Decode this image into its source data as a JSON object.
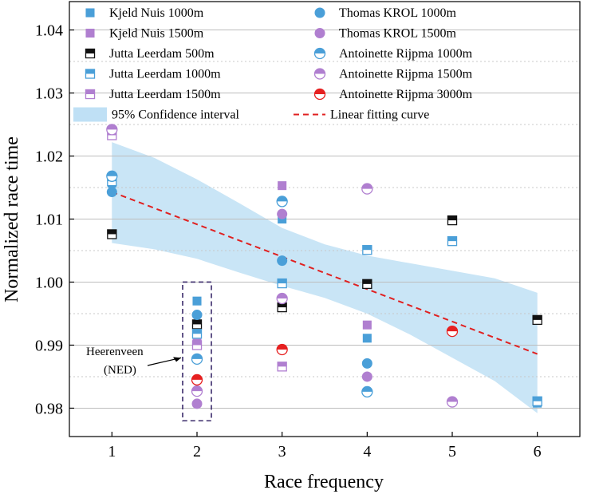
{
  "chart_data": {
    "type": "scatter",
    "xlabel": "Race frequency",
    "ylabel": "Normalized race time",
    "xlim": [
      0.5,
      6.5
    ],
    "ylim": [
      0.9755,
      1.0445
    ],
    "xticks": [
      1,
      2,
      3,
      4,
      5,
      6
    ],
    "yticks": [
      0.98,
      0.99,
      1.0,
      1.01,
      1.02,
      1.03,
      1.04
    ],
    "ytick_labels": [
      "0.98",
      "0.99",
      "1.00",
      "1.01",
      "1.02",
      "1.03",
      "1.04"
    ],
    "grid": "horizontal",
    "colors": {
      "blue": "#4a9fd8",
      "purple": "#b07fd0",
      "black": "#111111",
      "red": "#e62020",
      "band": "#bfe0f5",
      "fit": "#e02020"
    },
    "series": [
      {
        "name": "Kjeld Nuis 1000m",
        "marker": "square",
        "fill": "full",
        "color": "#4a9fd8",
        "points": [
          [
            1,
            1.0157
          ],
          [
            2,
            0.997
          ],
          [
            3,
            1.01
          ],
          [
            4,
            0.9911
          ],
          [
            5,
            1.0065
          ],
          [
            6,
            0.9808
          ]
        ]
      },
      {
        "name": "Kjeld Nuis 1500m",
        "marker": "square",
        "fill": "full",
        "color": "#b07fd0",
        "points": [
          [
            1,
            1.024
          ],
          [
            2,
            0.9903
          ],
          [
            3,
            1.0153
          ],
          [
            4,
            0.9932
          ]
        ]
      },
      {
        "name": "Jutta Leerdam 500m",
        "marker": "square",
        "fill": "top",
        "color": "#111111",
        "points": [
          [
            1,
            1.0076
          ],
          [
            2,
            0.9933
          ],
          [
            3,
            0.996
          ],
          [
            4,
            0.9997
          ],
          [
            5,
            1.0098
          ],
          [
            6,
            0.994
          ]
        ]
      },
      {
        "name": "Jutta Leerdam 1000m",
        "marker": "square",
        "fill": "top",
        "color": "#4a9fd8",
        "points": [
          [
            1,
            1.016
          ],
          [
            2,
            0.9918
          ],
          [
            3,
            0.9998
          ],
          [
            4,
            1.0051
          ],
          [
            5,
            1.0065
          ],
          [
            6,
            0.9811
          ]
        ]
      },
      {
        "name": "Jutta Leerdam 1500m",
        "marker": "square",
        "fill": "top",
        "color": "#b07fd0",
        "points": [
          [
            1,
            1.0233
          ],
          [
            2,
            0.99
          ],
          [
            3,
            0.9866
          ]
        ]
      },
      {
        "name": "Thomas KROL 1000m",
        "marker": "circle",
        "fill": "full",
        "color": "#4a9fd8",
        "points": [
          [
            1,
            1.0143
          ],
          [
            2,
            0.9948
          ],
          [
            3,
            1.0034
          ],
          [
            4,
            0.9871
          ]
        ]
      },
      {
        "name": "Thomas KROL 1500m",
        "marker": "circle",
        "fill": "full",
        "color": "#b07fd0",
        "points": [
          [
            2,
            0.9807
          ],
          [
            3,
            1.0108
          ],
          [
            4,
            0.985
          ]
        ]
      },
      {
        "name": "Antoinette Rijpma 1000m",
        "marker": "circle",
        "fill": "top",
        "color": "#4a9fd8",
        "points": [
          [
            1,
            1.0168
          ],
          [
            2,
            0.9878
          ],
          [
            3,
            1.0128
          ],
          [
            4,
            0.9826
          ]
        ]
      },
      {
        "name": "Antoinette Rijpma 1500m",
        "marker": "circle",
        "fill": "top",
        "color": "#b07fd0",
        "points": [
          [
            1,
            1.0242
          ],
          [
            2,
            0.9827
          ],
          [
            3,
            0.9974
          ],
          [
            4,
            1.0148
          ],
          [
            5,
            0.981
          ]
        ]
      },
      {
        "name": "Antoinette Rijpma 3000m",
        "marker": "circle",
        "fill": "top",
        "color": "#e62020",
        "points": [
          [
            2,
            0.9845
          ],
          [
            3,
            0.9893
          ],
          [
            5,
            0.9922
          ]
        ]
      }
    ],
    "fit": {
      "name": "Linear fitting curve",
      "x": [
        1,
        6
      ],
      "y": [
        1.0143,
        0.9886
      ]
    },
    "confidence": {
      "name": "95% Confidence interval",
      "x": [
        1,
        1.5,
        2,
        2.5,
        3,
        3.5,
        4,
        4.5,
        5,
        5.5,
        6
      ],
      "upper": [
        1.0222,
        1.0197,
        1.0163,
        1.0125,
        1.0086,
        1.006,
        1.0042,
        1.003,
        1.0018,
        1.0006,
        0.9983
      ],
      "lower": [
        1.0062,
        1.0052,
        1.0037,
        1.0015,
        0.9994,
        0.9975,
        0.995,
        0.9917,
        0.988,
        0.9843,
        0.9792
      ]
    },
    "annotation": {
      "text_line1": "Heerenveen",
      "text_line2": "(NED)",
      "x": 2,
      "box_y": [
        0.978,
        1.0
      ],
      "arrow_to_y": 0.9885
    },
    "legend_position": "top"
  }
}
